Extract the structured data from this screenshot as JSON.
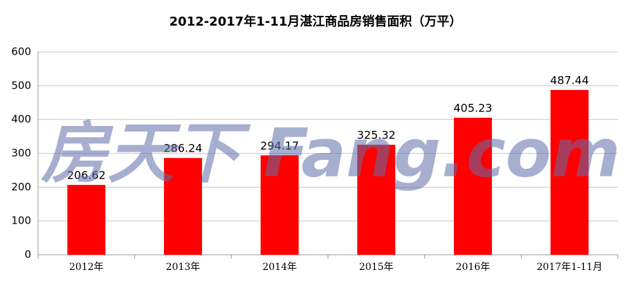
{
  "chart_data": {
    "type": "bar",
    "title": "2012-2017年1-11月湛江商品房销售面积（万平）",
    "categories": [
      "2012年",
      "2013年",
      "2014年",
      "2015年",
      "2016年",
      "2017年1-11月"
    ],
    "values": [
      206.62,
      286.24,
      294.17,
      325.32,
      405.23,
      487.44
    ],
    "color": "#ff0000",
    "ylim": [
      0,
      600
    ],
    "yticks": [
      0,
      100,
      200,
      300,
      400,
      500,
      600
    ],
    "grid": true,
    "watermark": "房天下 Fang.com"
  }
}
